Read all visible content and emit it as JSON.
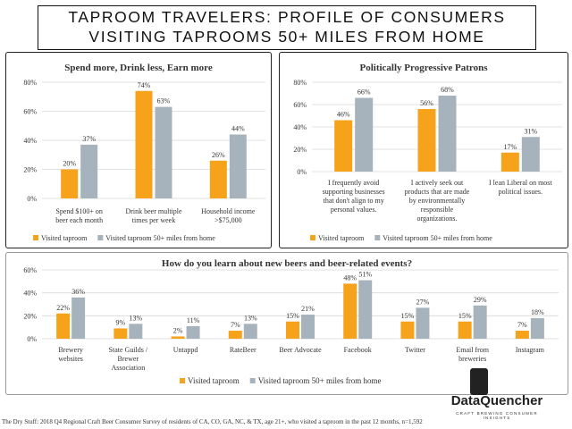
{
  "header": {
    "line1": "TAPROOM TRAVELERS: PROFILE OF CONSUMERS",
    "line2": "VISITING TAPROOMS 50+ MILES FROM HOME"
  },
  "colors": {
    "visited": "#F7A21B",
    "visited_50": "#A7B3BC"
  },
  "chart_data": [
    {
      "type": "bar",
      "title": "Spend more, Drink less, Earn more",
      "categories": [
        [
          "Spend $100+ on",
          "beer each month"
        ],
        [
          "Drink beer multiple",
          "times per week"
        ],
        [
          "Household income",
          ">$75,000"
        ]
      ],
      "ylim": [
        0,
        80
      ],
      "yticks": [
        "0%",
        "20%",
        "40%",
        "60%",
        "80%"
      ],
      "series": [
        {
          "name": "Visited taproom",
          "values": [
            20,
            74,
            26
          ],
          "labels": [
            "20%",
            "74%",
            "26%"
          ]
        },
        {
          "name": "Visited taproom 50+ miles from home",
          "values": [
            37,
            63,
            44
          ],
          "labels": [
            "37%",
            "63%",
            "44%"
          ]
        }
      ]
    },
    {
      "type": "bar",
      "title": "Politically Progressive Patrons",
      "categories": [
        [
          "I frequently avoid",
          "supporting businesses",
          "that don't align to my",
          "personal values."
        ],
        [
          "I actively seek out",
          "products that are made",
          "by environmentally",
          "responsible",
          "organizations."
        ],
        [
          "I lean Liberal on most",
          "political issues."
        ]
      ],
      "ylim": [
        0,
        80
      ],
      "yticks": [
        "0%",
        "20%",
        "40%",
        "60%",
        "80%"
      ],
      "series": [
        {
          "name": "Visited taproom",
          "values": [
            46,
            56,
            17
          ],
          "labels": [
            "46%",
            "56%",
            "17%"
          ]
        },
        {
          "name": "Visited taproom 50+ miles from home",
          "values": [
            66,
            68,
            31
          ],
          "labels": [
            "66%",
            "68%",
            "31%"
          ]
        }
      ]
    },
    {
      "type": "bar",
      "title": "How do you learn about new beers and beer-related events?",
      "categories": [
        [
          "Brewery",
          "websites"
        ],
        [
          "State Guilds /",
          "Brewer",
          "Association"
        ],
        [
          "Untappd"
        ],
        [
          "RateBeer"
        ],
        [
          "Beer Advocate"
        ],
        [
          "Facebook"
        ],
        [
          "Twitter"
        ],
        [
          "Email from",
          "breweries"
        ],
        [
          "Instagram"
        ]
      ],
      "ylim": [
        0,
        60
      ],
      "yticks": [
        "0%",
        "20%",
        "40%",
        "60%"
      ],
      "series": [
        {
          "name": "Visited taproom",
          "values": [
            22,
            9,
            2,
            7,
            15,
            48,
            15,
            15,
            7
          ],
          "labels": [
            "22%",
            "9%",
            "2%",
            "7%",
            "15%",
            "48%",
            "15%",
            "15%",
            "7%"
          ]
        },
        {
          "name": "Visited taproom 50+ miles from home",
          "values": [
            36,
            13,
            11,
            13,
            21,
            51,
            27,
            29,
            18
          ],
          "labels": [
            "36%",
            "13%",
            "11%",
            "13%",
            "21%",
            "51%",
            "27%",
            "29%",
            "18%"
          ]
        }
      ]
    }
  ],
  "logo": {
    "name": "DataQuencher",
    "tagline": "CRAFT BREWING CONSUMER INSIGHTS",
    "icon": "beer-glass-icon"
  },
  "footer": "The Dry Stuff: 2018 Q4 Regional Craft Beer Consumer Survey of residents of CA, CO, GA, NC, & TX, age 21+, who visited a taproom in the past 12 months, n=1,592"
}
